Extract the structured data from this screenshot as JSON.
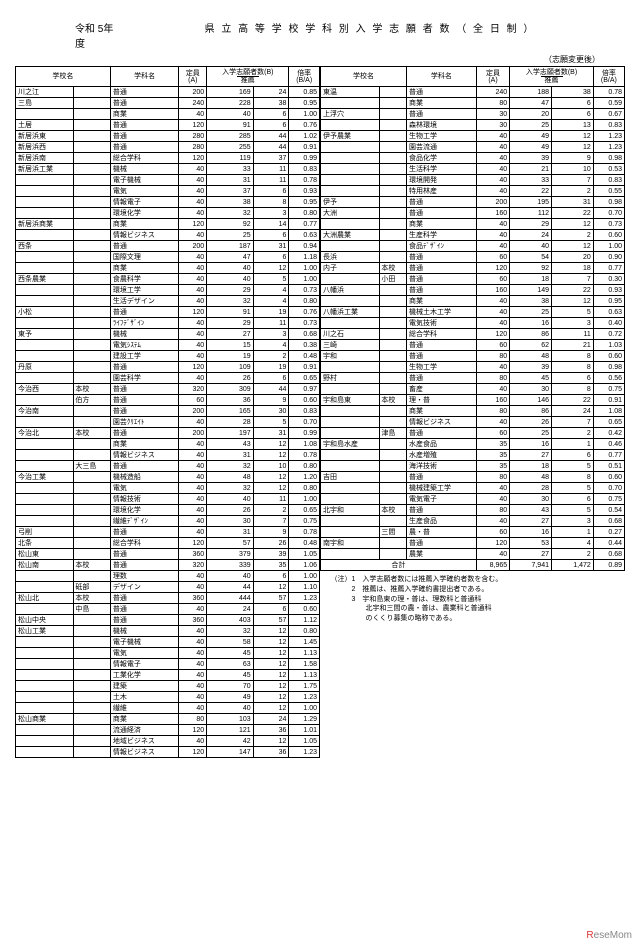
{
  "header": {
    "year": "令和 5年度",
    "title": "県 立 高 等 学 校 学 科 別 入 学 志 願 者 数 （ 全 日 制 ）",
    "subtitle": "（志願変更後）"
  },
  "cols": {
    "school": "学校名",
    "dept": "学科名",
    "cap": "定員\n(A)",
    "app": "入学志願者数(B)",
    "rec": "推薦",
    "rate": "倍率\n(B/A)"
  },
  "left": [
    {
      "s": "川之江",
      "d": "普通",
      "c": 200,
      "a": 169,
      "r": 24,
      "m": 0.85
    },
    {
      "s": "三島",
      "d": "普通",
      "c": 240,
      "a": 228,
      "r": 38,
      "m": 0.95
    },
    {
      "s": "",
      "d": "商業",
      "c": 40,
      "a": 40,
      "r": 6,
      "m": 1.0
    },
    {
      "s": "土居",
      "d": "普通",
      "c": 120,
      "a": 91,
      "r": 6,
      "m": 0.76
    },
    {
      "s": "新居浜東",
      "d": "普通",
      "c": 280,
      "a": 285,
      "r": 44,
      "m": 1.02
    },
    {
      "s": "新居浜西",
      "d": "普通",
      "c": 280,
      "a": 255,
      "r": 44,
      "m": 0.91
    },
    {
      "s": "新居浜南",
      "d": "総合学科",
      "c": 120,
      "a": 119,
      "r": 37,
      "m": 0.99
    },
    {
      "s": "新居浜工業",
      "d": "機械",
      "c": 40,
      "a": 33,
      "r": 11,
      "m": 0.83
    },
    {
      "s": "",
      "d": "電子機械",
      "c": 40,
      "a": 31,
      "r": 11,
      "m": 0.78
    },
    {
      "s": "",
      "d": "電気",
      "c": 40,
      "a": 37,
      "r": 6,
      "m": 0.93
    },
    {
      "s": "",
      "d": "情報電子",
      "c": 40,
      "a": 38,
      "r": 8,
      "m": 0.95
    },
    {
      "s": "",
      "d": "環境化学",
      "c": 40,
      "a": 32,
      "r": 3,
      "m": 0.8
    },
    {
      "s": "新居浜商業",
      "d": "商業",
      "c": 120,
      "a": 92,
      "r": 14,
      "m": 0.77
    },
    {
      "s": "",
      "d": "情報ビジネス",
      "c": 40,
      "a": 25,
      "r": 6,
      "m": 0.63
    },
    {
      "s": "西条",
      "d": "普通",
      "c": 200,
      "a": 187,
      "r": 31,
      "m": 0.94
    },
    {
      "s": "",
      "d": "国際文理",
      "c": 40,
      "a": 47,
      "r": 6,
      "m": 1.18
    },
    {
      "s": "",
      "d": "商業",
      "c": 40,
      "a": 40,
      "r": 12,
      "m": 1.0
    },
    {
      "s": "西条農業",
      "d": "食農科学",
      "c": 40,
      "a": 40,
      "r": 5,
      "m": 1.0
    },
    {
      "s": "",
      "d": "環境工学",
      "c": 40,
      "a": 29,
      "r": 4,
      "m": 0.73
    },
    {
      "s": "",
      "d": "生活デザイン",
      "c": 40,
      "a": 32,
      "r": 4,
      "m": 0.8
    },
    {
      "s": "小松",
      "d": "普通",
      "c": 120,
      "a": 91,
      "r": 19,
      "m": 0.76
    },
    {
      "s": "",
      "d": "ﾗｲﾌﾃﾞｻﾞｲﾝ",
      "c": 40,
      "a": 29,
      "r": 11,
      "m": 0.73
    },
    {
      "s": "東予",
      "d": "機械",
      "c": 40,
      "a": 27,
      "r": 3,
      "m": 0.68
    },
    {
      "s": "",
      "d": "電気ｼｽﾃﾑ",
      "c": 40,
      "a": 15,
      "r": 4,
      "m": 0.38
    },
    {
      "s": "",
      "d": "建設工学",
      "c": 40,
      "a": 19,
      "r": 2,
      "m": 0.48
    },
    {
      "s": "丹原",
      "d": "普通",
      "c": 120,
      "a": 109,
      "r": 19,
      "m": 0.91
    },
    {
      "s": "",
      "d": "園芸科学",
      "c": 40,
      "a": 26,
      "r": 6,
      "m": 0.65
    },
    {
      "s": "今治西",
      "sub": "本校",
      "d": "普通",
      "c": 320,
      "a": 309,
      "r": 44,
      "m": 0.97
    },
    {
      "s": "",
      "sub": "伯方",
      "d": "普通",
      "c": 60,
      "a": 36,
      "r": 9,
      "m": 0.6
    },
    {
      "s": "今治南",
      "d": "普通",
      "c": 200,
      "a": 165,
      "r": 30,
      "m": 0.83
    },
    {
      "s": "",
      "d": "園芸ｸﾘｴｲﾄ",
      "c": 40,
      "a": 28,
      "r": 5,
      "m": 0.7
    },
    {
      "s": "今治北",
      "sub": "本校",
      "d": "普通",
      "c": 200,
      "a": 197,
      "r": 31,
      "m": 0.99
    },
    {
      "s": "",
      "d": "商業",
      "c": 40,
      "a": 43,
      "r": 12,
      "m": 1.08
    },
    {
      "s": "",
      "d": "情報ビジネス",
      "c": 40,
      "a": 31,
      "r": 12,
      "m": 0.78
    },
    {
      "s": "",
      "sub": "大三島",
      "d": "普通",
      "c": 40,
      "a": 32,
      "r": 10,
      "m": 0.8
    },
    {
      "s": "今治工業",
      "d": "機械造船",
      "c": 40,
      "a": 48,
      "r": 12,
      "m": 1.2
    },
    {
      "s": "",
      "d": "電気",
      "c": 40,
      "a": 32,
      "r": 12,
      "m": 0.8
    },
    {
      "s": "",
      "d": "情報技術",
      "c": 40,
      "a": 40,
      "r": 11,
      "m": 1.0
    },
    {
      "s": "",
      "d": "環境化学",
      "c": 40,
      "a": 26,
      "r": 2,
      "m": 0.65
    },
    {
      "s": "",
      "d": "繊維ﾃﾞｻﾞｲﾝ",
      "c": 40,
      "a": 30,
      "r": 7,
      "m": 0.75
    },
    {
      "s": "弓削",
      "d": "普通",
      "c": 40,
      "a": 31,
      "r": 9,
      "m": 0.78
    },
    {
      "s": "北条",
      "d": "総合学科",
      "c": 120,
      "a": 57,
      "r": 26,
      "m": 0.48
    },
    {
      "s": "松山東",
      "d": "普通",
      "c": 360,
      "a": 379,
      "r": 39,
      "m": 1.05
    },
    {
      "s": "松山南",
      "sub": "本校",
      "d": "普通",
      "c": 320,
      "a": 339,
      "r": 35,
      "m": 1.06
    },
    {
      "s": "",
      "d": "理数",
      "c": 40,
      "a": 40,
      "r": 6,
      "m": 1.0
    },
    {
      "s": "",
      "sub": "砥部",
      "d": "デザイン",
      "c": 40,
      "a": 44,
      "r": 12,
      "m": 1.1
    },
    {
      "s": "松山北",
      "sub": "本校",
      "d": "普通",
      "c": 360,
      "a": 444,
      "r": 57,
      "m": 1.23
    },
    {
      "s": "",
      "sub": "中島",
      "d": "普通",
      "c": 40,
      "a": 24,
      "r": 6,
      "m": 0.6
    },
    {
      "s": "松山中央",
      "d": "普通",
      "c": 360,
      "a": 403,
      "r": 57,
      "m": 1.12
    },
    {
      "s": "松山工業",
      "d": "機械",
      "c": 40,
      "a": 32,
      "r": 12,
      "m": 0.8
    },
    {
      "s": "",
      "d": "電子機械",
      "c": 40,
      "a": 58,
      "r": 12,
      "m": 1.45
    },
    {
      "s": "",
      "d": "電気",
      "c": 40,
      "a": 45,
      "r": 12,
      "m": 1.13
    },
    {
      "s": "",
      "d": "情報電子",
      "c": 40,
      "a": 63,
      "r": 12,
      "m": 1.58
    },
    {
      "s": "",
      "d": "工業化学",
      "c": 40,
      "a": 45,
      "r": 12,
      "m": 1.13
    },
    {
      "s": "",
      "d": "建築",
      "c": 40,
      "a": 70,
      "r": 12,
      "m": 1.75
    },
    {
      "s": "",
      "d": "土木",
      "c": 40,
      "a": 49,
      "r": 12,
      "m": 1.23
    },
    {
      "s": "",
      "d": "繊維",
      "c": 40,
      "a": 40,
      "r": 12,
      "m": 1.0
    },
    {
      "s": "松山商業",
      "d": "商業",
      "c": 80,
      "a": 103,
      "r": 24,
      "m": 1.29
    },
    {
      "s": "",
      "d": "流通経済",
      "c": 120,
      "a": 121,
      "r": 36,
      "m": 1.01
    },
    {
      "s": "",
      "d": "地域ビジネス",
      "c": 40,
      "a": 42,
      "r": 12,
      "m": 1.05
    },
    {
      "s": "",
      "d": "情報ビジネス",
      "c": 120,
      "a": 147,
      "r": 36,
      "m": 1.23
    }
  ],
  "right": [
    {
      "s": "東温",
      "d": "普通",
      "c": 240,
      "a": 188,
      "r": 38,
      "m": 0.78
    },
    {
      "s": "",
      "d": "商業",
      "c": 80,
      "a": 47,
      "r": 6,
      "m": 0.59
    },
    {
      "s": "上浮穴",
      "d": "普通",
      "c": 30,
      "a": 20,
      "r": 6,
      "m": 0.67
    },
    {
      "s": "",
      "d": "森林環境",
      "c": 30,
      "a": 25,
      "r": 13,
      "m": 0.83
    },
    {
      "s": "伊予農業",
      "d": "生物工学",
      "c": 40,
      "a": 49,
      "r": 12,
      "m": 1.23
    },
    {
      "s": "",
      "d": "園芸流通",
      "c": 40,
      "a": 49,
      "r": 12,
      "m": 1.23
    },
    {
      "s": "",
      "d": "食品化学",
      "c": 40,
      "a": 39,
      "r": 9,
      "m": 0.98
    },
    {
      "s": "",
      "d": "生活科学",
      "c": 40,
      "a": 21,
      "r": 10,
      "m": 0.53
    },
    {
      "s": "",
      "d": "環境開発",
      "c": 40,
      "a": 33,
      "r": 7,
      "m": 0.83
    },
    {
      "s": "",
      "d": "特用林産",
      "c": 40,
      "a": 22,
      "r": 2,
      "m": 0.55
    },
    {
      "s": "伊予",
      "d": "普通",
      "c": 200,
      "a": 195,
      "r": 31,
      "m": 0.98
    },
    {
      "s": "大洲",
      "d": "普通",
      "c": 160,
      "a": 112,
      "r": 22,
      "m": 0.7
    },
    {
      "s": "",
      "d": "商業",
      "c": 40,
      "a": 29,
      "r": 12,
      "m": 0.73
    },
    {
      "s": "大洲農業",
      "d": "生産科学",
      "c": 40,
      "a": 24,
      "r": 2,
      "m": 0.6
    },
    {
      "s": "",
      "d": "食品ﾃﾞｻﾞｲﾝ",
      "c": 40,
      "a": 40,
      "r": 12,
      "m": 1.0
    },
    {
      "s": "長浜",
      "d": "普通",
      "c": 60,
      "a": 54,
      "r": 20,
      "m": 0.9
    },
    {
      "s": "内子",
      "sub": "本校",
      "d": "普通",
      "c": 120,
      "a": 92,
      "r": 18,
      "m": 0.77
    },
    {
      "s": "",
      "sub": "小田",
      "d": "普通",
      "c": 60,
      "a": 18,
      "r": 7,
      "m": 0.3
    },
    {
      "s": "八幡浜",
      "d": "普通",
      "c": 160,
      "a": 149,
      "r": 22,
      "m": 0.93
    },
    {
      "s": "",
      "d": "商業",
      "c": 40,
      "a": 38,
      "r": 12,
      "m": 0.95
    },
    {
      "s": "八幡浜工業",
      "d": "機械土木工学",
      "c": 40,
      "a": 25,
      "r": 5,
      "m": 0.63
    },
    {
      "s": "",
      "d": "電気技術",
      "c": 40,
      "a": 16,
      "r": 3,
      "m": 0.4
    },
    {
      "s": "川之石",
      "d": "総合学科",
      "c": 120,
      "a": 86,
      "r": 11,
      "m": 0.72
    },
    {
      "s": "三崎",
      "d": "普通",
      "c": 60,
      "a": 62,
      "r": 21,
      "m": 1.03
    },
    {
      "s": "宇和",
      "d": "普通",
      "c": 80,
      "a": 48,
      "r": 8,
      "m": 0.6
    },
    {
      "s": "",
      "d": "生物工学",
      "c": 40,
      "a": 39,
      "r": 8,
      "m": 0.98
    },
    {
      "s": "野村",
      "d": "普通",
      "c": 80,
      "a": 45,
      "r": 6,
      "m": 0.56
    },
    {
      "s": "",
      "d": "畜産",
      "c": 40,
      "a": 30,
      "r": 8,
      "m": 0.75
    },
    {
      "s": "宇和島東",
      "sub": "本校",
      "d": "理・普",
      "c": 160,
      "a": 146,
      "r": 22,
      "m": 0.91
    },
    {
      "s": "",
      "d": "商業",
      "c": 80,
      "a": 86,
      "r": 24,
      "m": 1.08
    },
    {
      "s": "",
      "d": "情報ビジネス",
      "c": 40,
      "a": 26,
      "r": 7,
      "m": 0.65
    },
    {
      "s": "",
      "sub": "津島",
      "d": "普通",
      "c": 60,
      "a": 25,
      "r": 2,
      "m": 0.42
    },
    {
      "s": "宇和島水産",
      "d": "水産食品",
      "c": 35,
      "a": 16,
      "r": 1,
      "m": 0.46
    },
    {
      "s": "",
      "d": "水産増殖",
      "c": 35,
      "a": 27,
      "r": 6,
      "m": 0.77
    },
    {
      "s": "",
      "d": "海洋技術",
      "c": 35,
      "a": 18,
      "r": 5,
      "m": 0.51
    },
    {
      "s": "吉田",
      "d": "普通",
      "c": 80,
      "a": 48,
      "r": 8,
      "m": 0.6
    },
    {
      "s": "",
      "d": "機械建築工学",
      "c": 40,
      "a": 28,
      "r": 5,
      "m": 0.7
    },
    {
      "s": "",
      "d": "電気電子",
      "c": 40,
      "a": 30,
      "r": 6,
      "m": 0.75
    },
    {
      "s": "北宇和",
      "sub": "本校",
      "d": "普通",
      "c": 80,
      "a": 43,
      "r": 5,
      "m": 0.54
    },
    {
      "s": "",
      "d": "生産食品",
      "c": 40,
      "a": 27,
      "r": 3,
      "m": 0.68
    },
    {
      "s": "",
      "sub": "三間",
      "d": "農・普",
      "c": 60,
      "a": 16,
      "r": 1,
      "m": 0.27
    },
    {
      "s": "南宇和",
      "d": "普通",
      "c": 120,
      "a": 53,
      "r": 4,
      "m": 0.44
    },
    {
      "s": "",
      "d": "農業",
      "c": 40,
      "a": 27,
      "r": 2,
      "m": 0.68
    }
  ],
  "total": {
    "label": "合計",
    "c": 8965,
    "a": 7941,
    "r": 1472,
    "m": 0.89
  },
  "notes": [
    "（注）1　入学志願者数には推薦入学確約者数を含む。",
    "　　　2　推薦は、推薦入学確約書提出者である。",
    "　　　3　宇和島東の理・普は、理数科と普通科",
    "　　　　　北宇和三間の農・普は、農業科と普通科",
    "　　　　　のくくり募集の略称である。"
  ],
  "logo": "ReseMom"
}
